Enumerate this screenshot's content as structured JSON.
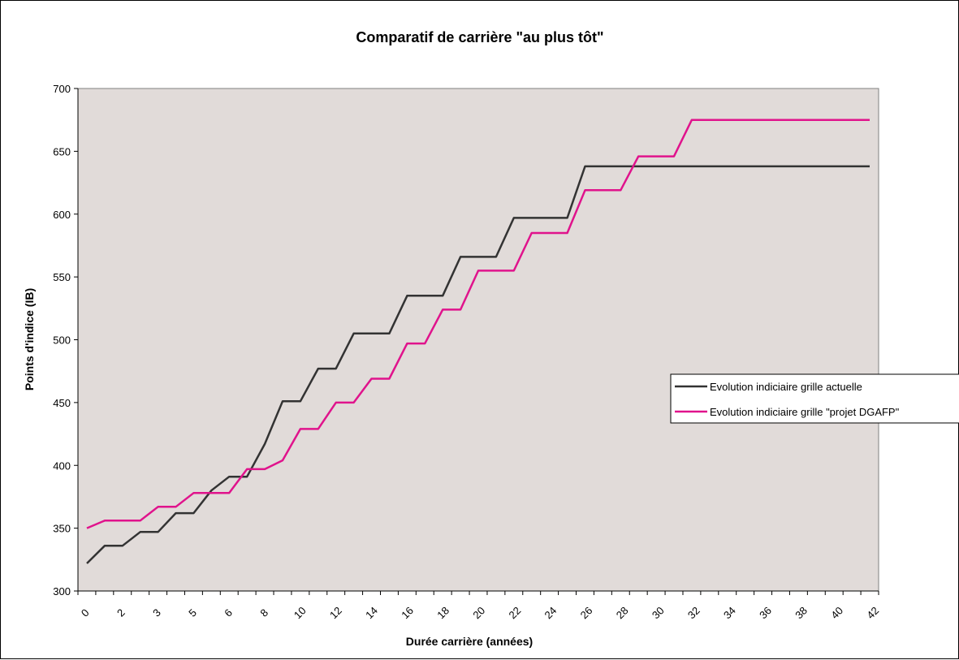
{
  "chart_data": {
    "type": "line",
    "title": "Comparatif de carrière \"au plus tôt\"",
    "xlabel": "Durée carrière (années)",
    "ylabel": "Points d'indice (IB)",
    "ylim": [
      300,
      700
    ],
    "yticks": [
      300,
      350,
      400,
      450,
      500,
      550,
      600,
      650,
      700
    ],
    "xlim": [
      0,
      45
    ],
    "xtick_labels": [
      "0",
      "2",
      "3",
      "5",
      "6",
      "8",
      "10",
      "12",
      "14",
      "16",
      "18",
      "20",
      "22",
      "24",
      "26",
      "28",
      "30",
      "32",
      "34",
      "36",
      "38",
      "40",
      "42"
    ],
    "x": [
      0,
      1,
      2,
      3,
      4,
      5,
      6,
      7,
      8,
      9,
      10,
      11,
      12,
      13,
      14,
      15,
      16,
      17,
      18,
      19,
      20,
      21,
      22,
      23,
      24,
      25,
      26,
      27,
      28,
      29,
      30,
      31,
      32,
      33,
      34,
      35,
      36,
      37,
      38,
      39,
      40,
      41,
      42,
      43,
      44
    ],
    "series": [
      {
        "name": "Evolution indiciaire grille actuelle",
        "color": "#333333",
        "values": [
          322,
          336,
          336,
          347,
          347,
          362,
          362,
          380,
          391,
          391,
          417,
          451,
          451,
          477,
          477,
          505,
          505,
          505,
          535,
          535,
          535,
          566,
          566,
          566,
          597,
          597,
          597,
          597,
          638,
          638,
          638,
          638,
          638,
          638,
          638,
          638,
          638,
          638,
          638,
          638,
          638,
          638,
          638,
          638,
          638
        ]
      },
      {
        "name": "Evolution indiciaire grille \"projet DGAFP\"",
        "color": "#e0138c",
        "values": [
          350,
          356,
          356,
          356,
          367,
          367,
          378,
          378,
          378,
          397,
          397,
          404,
          429,
          429,
          450,
          450,
          469,
          469,
          497,
          497,
          524,
          524,
          555,
          555,
          555,
          585,
          585,
          585,
          619,
          619,
          619,
          646,
          646,
          646,
          675,
          675,
          675,
          675,
          675,
          675,
          675,
          675,
          675,
          675,
          675
        ]
      }
    ],
    "grid": false,
    "plot_background": "#e1dbd9",
    "legend_position": "right"
  }
}
